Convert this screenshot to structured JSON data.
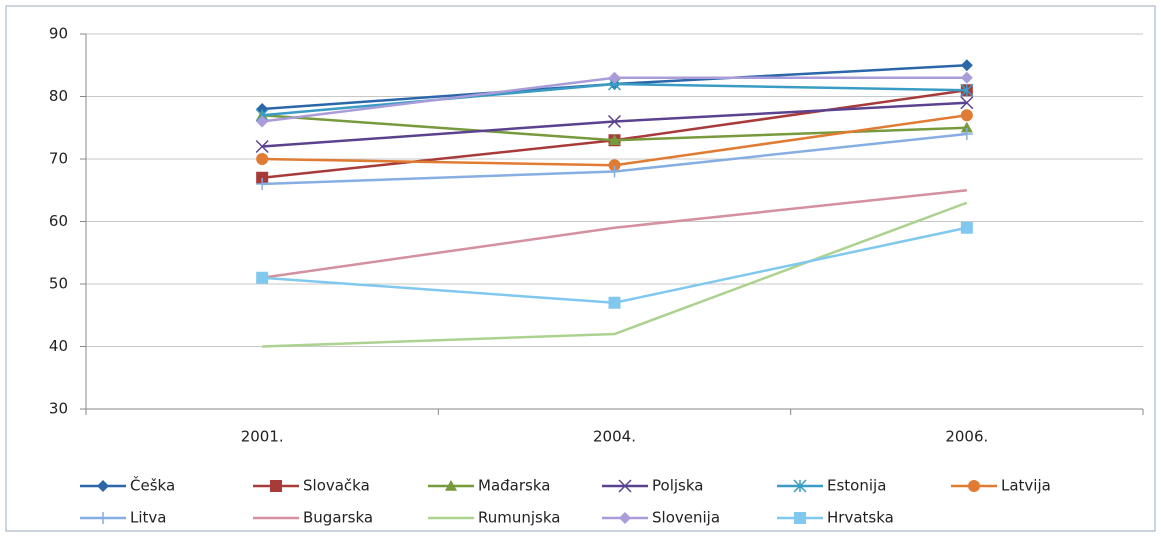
{
  "chart_data": {
    "type": "line",
    "categories": [
      "2001.",
      "2004.",
      "2006."
    ],
    "ylim": [
      30,
      90
    ],
    "yticks": [
      30,
      40,
      50,
      60,
      70,
      80,
      90
    ],
    "grid": true,
    "legend": "bottom",
    "series": [
      {
        "name": "Češka",
        "color": "#2b67a8",
        "marker": "diamond",
        "values": [
          78,
          82,
          85
        ]
      },
      {
        "name": "Slovačka",
        "color": "#a83a3a",
        "marker": "square",
        "values": [
          67,
          73,
          81
        ]
      },
      {
        "name": "Mađarska",
        "color": "#769a3c",
        "marker": "triangle",
        "values": [
          77,
          73,
          75
        ]
      },
      {
        "name": "Poljska",
        "color": "#5b428f",
        "marker": "x",
        "values": [
          72,
          76,
          79
        ]
      },
      {
        "name": "Estonija",
        "color": "#3a9cc4",
        "marker": "star",
        "values": [
          77,
          82,
          81
        ]
      },
      {
        "name": "Latvija",
        "color": "#e07b33",
        "marker": "circle",
        "values": [
          70,
          69,
          77
        ]
      },
      {
        "name": "Litva",
        "color": "#86aee2",
        "marker": "plus",
        "values": [
          66,
          68,
          74
        ]
      },
      {
        "name": "Bugarska",
        "color": "#d4909e",
        "values": [
          51,
          59,
          65
        ]
      },
      {
        "name": "Rumunjska",
        "color": "#acd290",
        "values": [
          40,
          42,
          63
        ]
      },
      {
        "name": "Slovenija",
        "color": "#a99cd8",
        "marker": "diamond",
        "values": [
          76,
          83,
          83
        ]
      },
      {
        "name": "Hrvatska",
        "color": "#80c8ee",
        "marker": "square",
        "values": [
          51,
          47,
          59
        ]
      }
    ]
  }
}
